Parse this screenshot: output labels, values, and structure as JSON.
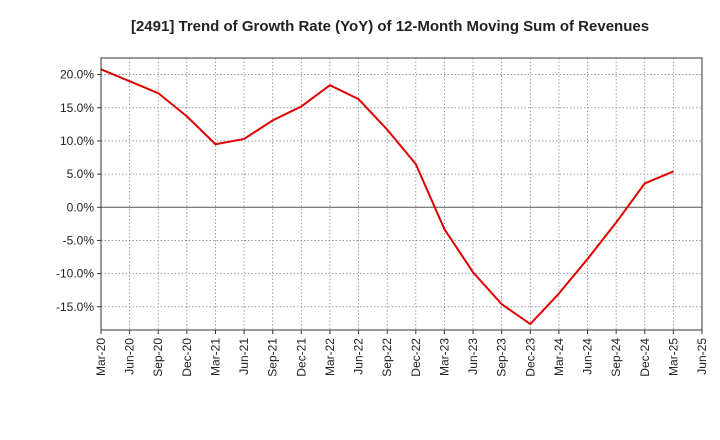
{
  "chart_data": {
    "type": "line",
    "title": "[2491]  Trend of Growth Rate (YoY) of 12-Month Moving Sum of Revenues",
    "xlabel": "",
    "ylabel": "",
    "x_ticks": [
      "Mar-20",
      "Jun-20",
      "Sep-20",
      "Dec-20",
      "Mar-21",
      "Jun-21",
      "Sep-21",
      "Dec-21",
      "Mar-22",
      "Jun-22",
      "Sep-22",
      "Dec-22",
      "Mar-23",
      "Jun-23",
      "Sep-23",
      "Dec-23",
      "Mar-24",
      "Jun-24",
      "Sep-24",
      "Dec-24",
      "Mar-25",
      "Jun-25"
    ],
    "y_ticks": [
      "20.0%",
      "15.0%",
      "10.0%",
      "5.0%",
      "0.0%",
      "-5.0%",
      "-10.0%",
      "-15.0%"
    ],
    "ylim": [
      -18.5,
      22.5
    ],
    "grid": true,
    "series": [
      {
        "color": "#e00000",
        "x": [
          "Mar-20",
          "Jun-20",
          "Sep-20",
          "Dec-20",
          "Mar-21",
          "Jun-21",
          "Sep-21",
          "Dec-21",
          "Mar-22",
          "Jun-22",
          "Sep-22",
          "Dec-22",
          "Mar-23",
          "Jun-23",
          "Sep-23",
          "Dec-23",
          "Mar-24",
          "Jun-24",
          "Sep-24",
          "Dec-24",
          "Mar-25"
        ],
        "values": [
          20.8,
          19.0,
          17.2,
          13.7,
          9.5,
          10.3,
          13.1,
          15.2,
          18.4,
          16.3,
          11.7,
          6.5,
          -3.3,
          -9.8,
          -14.6,
          -17.6,
          -13.0,
          -7.8,
          -2.3,
          3.6,
          5.4
        ]
      }
    ]
  }
}
